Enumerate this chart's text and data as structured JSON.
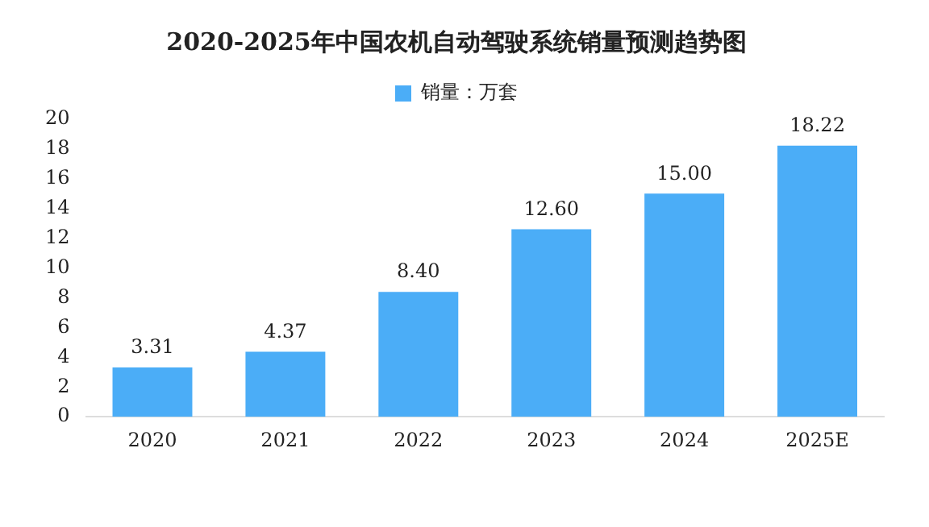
{
  "chart_data": {
    "type": "bar",
    "title": "2020-2025年中国农机自动驾驶系统销量预测趋势图",
    "categories": [
      "2020",
      "2021",
      "2022",
      "2023",
      "2024",
      "2025E"
    ],
    "series": [
      {
        "name": "销量：万套",
        "color": "#4badf7",
        "values": [
          3.31,
          4.37,
          8.4,
          12.6,
          15,
          18.22
        ]
      }
    ],
    "value_labels": [
      "3.31",
      "4.37",
      "8.40",
      "12.60",
      "15.00",
      "18.22"
    ],
    "ylim": [
      0,
      20
    ],
    "yticks": [
      0,
      2,
      4,
      6,
      8,
      10,
      12,
      14,
      16,
      18,
      20
    ],
    "grid": false,
    "legend": "top"
  }
}
